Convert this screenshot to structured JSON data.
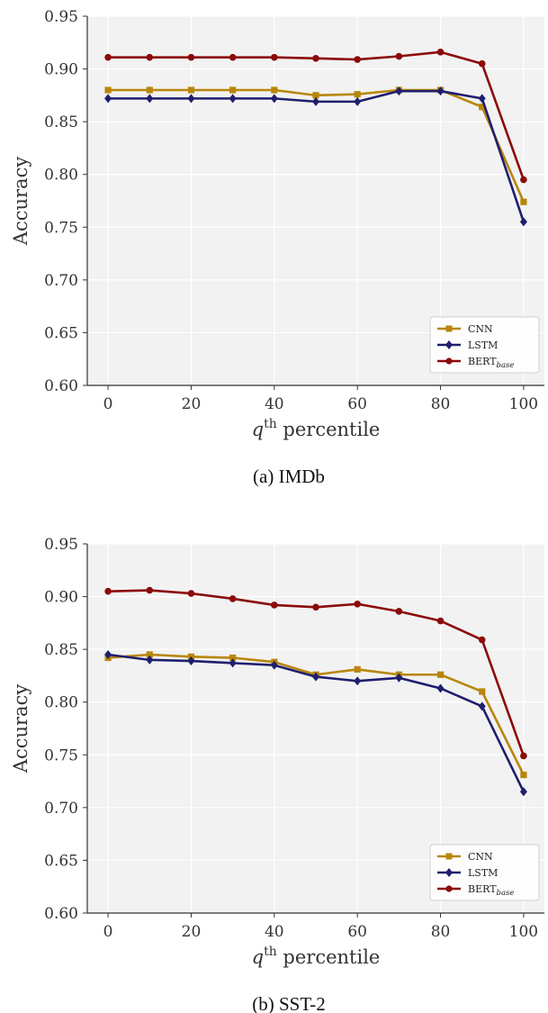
{
  "chart_data": [
    {
      "type": "line",
      "caption": "(a) IMDb",
      "xlabel": "q^th percentile",
      "ylabel": "Accuracy",
      "x": [
        0,
        10,
        20,
        30,
        40,
        50,
        60,
        70,
        80,
        90,
        100
      ],
      "xticks": [
        0,
        20,
        40,
        60,
        80,
        100
      ],
      "yticks": [
        0.6,
        0.65,
        0.7,
        0.75,
        0.8,
        0.85,
        0.9,
        0.95
      ],
      "xlim": [
        -5,
        105
      ],
      "ylim": [
        0.6,
        0.95
      ],
      "grid": true,
      "legend_position": "bottom-right",
      "series": [
        {
          "name": "CNN",
          "color": "#b8860b",
          "marker": "square",
          "values": [
            0.88,
            0.88,
            0.88,
            0.88,
            0.88,
            0.875,
            0.876,
            0.88,
            0.88,
            0.864,
            0.774
          ]
        },
        {
          "name": "LSTM",
          "color": "#1f1f6e",
          "marker": "diamond",
          "values": [
            0.872,
            0.872,
            0.872,
            0.872,
            0.872,
            0.869,
            0.869,
            0.879,
            0.879,
            0.872,
            0.755
          ]
        },
        {
          "name": "BERT",
          "name_sub": "base",
          "color": "#8b0a0a",
          "marker": "circle",
          "values": [
            0.911,
            0.911,
            0.911,
            0.911,
            0.911,
            0.91,
            0.909,
            0.912,
            0.916,
            0.905,
            0.795
          ]
        }
      ]
    },
    {
      "type": "line",
      "caption": "(b) SST-2",
      "xlabel": "q^th percentile",
      "ylabel": "Accuracy",
      "x": [
        0,
        10,
        20,
        30,
        40,
        50,
        60,
        70,
        80,
        90,
        100
      ],
      "xticks": [
        0,
        20,
        40,
        60,
        80,
        100
      ],
      "yticks": [
        0.6,
        0.65,
        0.7,
        0.75,
        0.8,
        0.85,
        0.9,
        0.95
      ],
      "xlim": [
        -5,
        105
      ],
      "ylim": [
        0.6,
        0.95
      ],
      "grid": true,
      "legend_position": "bottom-right",
      "series": [
        {
          "name": "CNN",
          "color": "#b8860b",
          "marker": "square",
          "values": [
            0.842,
            0.845,
            0.843,
            0.842,
            0.838,
            0.826,
            0.831,
            0.826,
            0.826,
            0.81,
            0.731
          ]
        },
        {
          "name": "LSTM",
          "color": "#1f1f6e",
          "marker": "diamond",
          "values": [
            0.845,
            0.84,
            0.839,
            0.837,
            0.835,
            0.824,
            0.82,
            0.823,
            0.813,
            0.796,
            0.715
          ]
        },
        {
          "name": "BERT",
          "name_sub": "base",
          "color": "#8b0a0a",
          "marker": "circle",
          "values": [
            0.905,
            0.906,
            0.903,
            0.898,
            0.892,
            0.89,
            0.893,
            0.886,
            0.877,
            0.859,
            0.749
          ]
        }
      ]
    }
  ]
}
